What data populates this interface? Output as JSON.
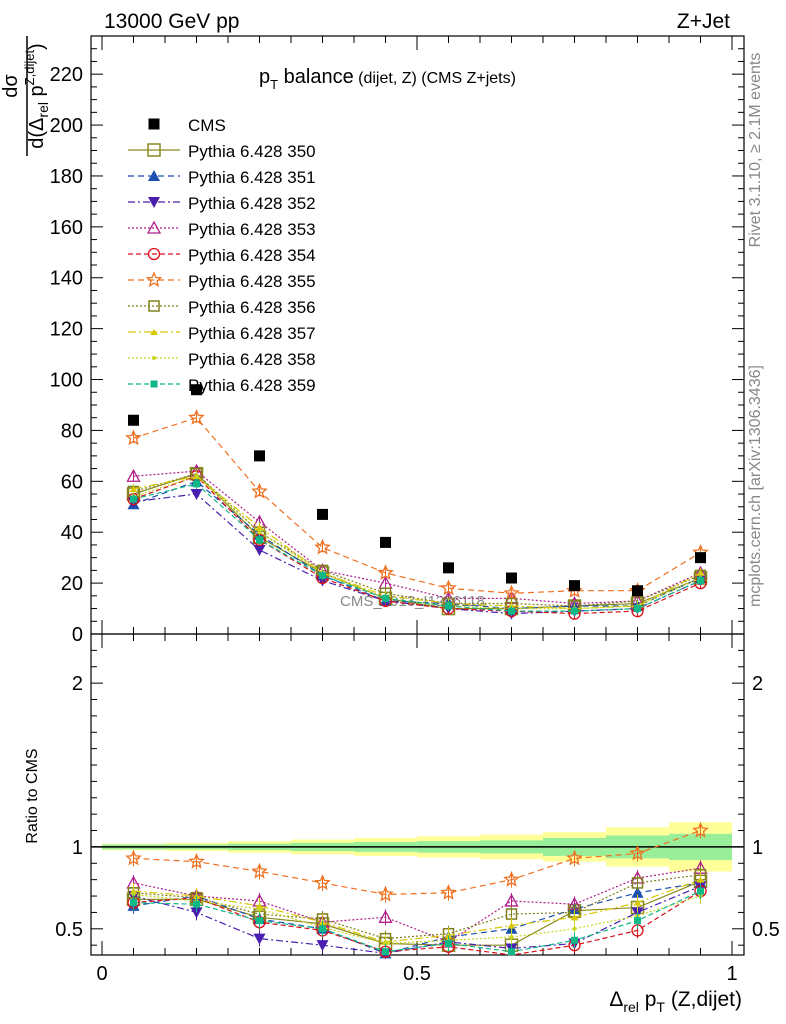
{
  "header": {
    "energy_label": "13000 GeV pp",
    "process_label": "Z+Jet"
  },
  "plot_title": {
    "main": "p",
    "sub": "T",
    "balance": " balance",
    "qualifier": " (dijet, Z)",
    "suffix": " (CMS Z+jets)"
  },
  "side_labels": {
    "rivet": "Rivet 3.1.10, ≥ 2.1M events",
    "mcplots": "mcplots.cern.ch [arXiv:1306.3436]"
  },
  "watermark": "CMS_2013_I1256118",
  "axes": {
    "ylabel_top": "dσ / d(Δrel pT Z,dijet)",
    "ylabel_ratio": "Ratio to CMS",
    "xlabel": "Δrel pT (Z,dijet)",
    "xlabel_parts": {
      "delta": "Δ",
      "rel": "rel",
      "p": " p",
      "T": "T",
      "tail": " (Z,dijet)"
    }
  },
  "chart_data": {
    "type": "scatter",
    "x": [
      0.05,
      0.15,
      0.25,
      0.35,
      0.45,
      0.55,
      0.65,
      0.75,
      0.85,
      0.95
    ],
    "xlim": [
      0,
      1
    ],
    "ylim_main": [
      0,
      235
    ],
    "ylim_ratio": [
      0.34,
      2.3
    ],
    "main_ticks": [
      0,
      20,
      40,
      60,
      80,
      100,
      120,
      140,
      160,
      180,
      200,
      220
    ],
    "ratio_ticks": [
      0.5,
      1,
      2
    ],
    "x_ticks": [
      0,
      0.5,
      1
    ],
    "x_tick_labels": [
      "0",
      "0.5",
      "1"
    ],
    "data": {
      "name": "CMS",
      "values": [
        84,
        96,
        70,
        47,
        36,
        26,
        22,
        19,
        17,
        30
      ]
    },
    "band_inner": [
      0.015,
      0.015,
      0.02,
      0.025,
      0.03,
      0.035,
      0.04,
      0.055,
      0.07,
      0.08
    ],
    "band_outer": [
      0.02,
      0.025,
      0.035,
      0.045,
      0.055,
      0.065,
      0.075,
      0.09,
      0.12,
      0.15
    ],
    "series": [
      {
        "name": "Pythia 6.428 350",
        "color": "#8a8a1e",
        "marker": "square-open",
        "dash": "",
        "values": [
          55,
          63,
          38,
          24,
          14,
          10,
          10,
          11,
          12,
          22
        ],
        "ratio": [
          0.68,
          0.68,
          0.57,
          0.53,
          0.41,
          0.4,
          0.4,
          0.61,
          0.63,
          0.79
        ]
      },
      {
        "name": "Pythia 6.428 351",
        "color": "#1b4fb0",
        "marker": "triangle-up",
        "dash": "6,4",
        "values": [
          51,
          60,
          39,
          23,
          13,
          12,
          10,
          11,
          11,
          22
        ],
        "ratio": [
          0.64,
          0.7,
          0.56,
          0.5,
          0.35,
          0.45,
          0.5,
          0.62,
          0.72,
          0.78
        ]
      },
      {
        "name": "Pythia 6.428 352",
        "color": "#4a1fb0",
        "marker": "triangle-down",
        "dash": "7,3,2,3",
        "values": [
          52,
          55,
          33,
          21,
          13,
          10,
          8,
          9,
          10,
          21
        ],
        "ratio": [
          0.7,
          0.6,
          0.44,
          0.4,
          0.35,
          0.42,
          0.38,
          0.41,
          0.6,
          0.76
        ]
      },
      {
        "name": "Pythia 6.428 353",
        "color": "#b01f8a",
        "marker": "triangle-up-open",
        "dash": "2,2",
        "values": [
          62,
          64,
          44,
          25,
          20,
          14,
          14,
          12,
          13,
          24
        ],
        "ratio": [
          0.78,
          0.7,
          0.67,
          0.54,
          0.57,
          0.42,
          0.67,
          0.65,
          0.81,
          0.87
        ]
      },
      {
        "name": "Pythia 6.428 354",
        "color": "#d8101a",
        "marker": "circle-open",
        "dash": "5,3",
        "values": [
          53,
          62,
          37,
          22,
          13,
          10,
          9,
          8,
          9,
          20
        ],
        "ratio": [
          0.66,
          0.69,
          0.54,
          0.49,
          0.36,
          0.39,
          0.33,
          0.4,
          0.49,
          0.73
        ]
      },
      {
        "name": "Pythia 6.428 355",
        "color": "#f07020",
        "marker": "star-open",
        "dash": "6,4",
        "values": [
          77,
          85,
          56,
          34,
          24,
          18,
          16,
          17,
          17,
          32
        ],
        "ratio": [
          0.93,
          0.91,
          0.85,
          0.78,
          0.71,
          0.72,
          0.8,
          0.93,
          0.96,
          1.1
        ]
      },
      {
        "name": "Pythia 6.428 356",
        "color": "#808020",
        "marker": "square-open-small",
        "dash": "2,2",
        "values": [
          56,
          63,
          40,
          25,
          16,
          12,
          12,
          11,
          13,
          23
        ],
        "ratio": [
          0.72,
          0.69,
          0.59,
          0.56,
          0.44,
          0.47,
          0.59,
          0.6,
          0.78,
          0.83
        ]
      },
      {
        "name": "Pythia 6.428 357",
        "color": "#d8c800",
        "marker": "tri-small",
        "dash": "8,3,2,3",
        "values": [
          57,
          62,
          42,
          24,
          15,
          12,
          11,
          10,
          11,
          24
        ],
        "ratio": [
          0.73,
          0.7,
          0.64,
          0.54,
          0.42,
          0.46,
          0.52,
          0.57,
          0.66,
          0.8
        ]
      },
      {
        "name": "Pythia 6.428 358",
        "color": "#c8d820",
        "marker": "dot",
        "dash": "2,2",
        "values": [
          54,
          62,
          40,
          24,
          14,
          11,
          10,
          10,
          11,
          22
        ],
        "ratio": [
          0.71,
          0.67,
          0.62,
          0.51,
          0.41,
          0.43,
          0.45,
          0.5,
          0.58,
          0.7
        ]
      },
      {
        "name": "Pythia 6.428 359",
        "color": "#10b888",
        "marker": "square-small",
        "dash": "5,3",
        "values": [
          53,
          59,
          37,
          23,
          14,
          11,
          9,
          9,
          10,
          21
        ],
        "ratio": [
          0.66,
          0.65,
          0.55,
          0.5,
          0.36,
          0.41,
          0.36,
          0.43,
          0.55,
          0.73
        ]
      }
    ]
  }
}
